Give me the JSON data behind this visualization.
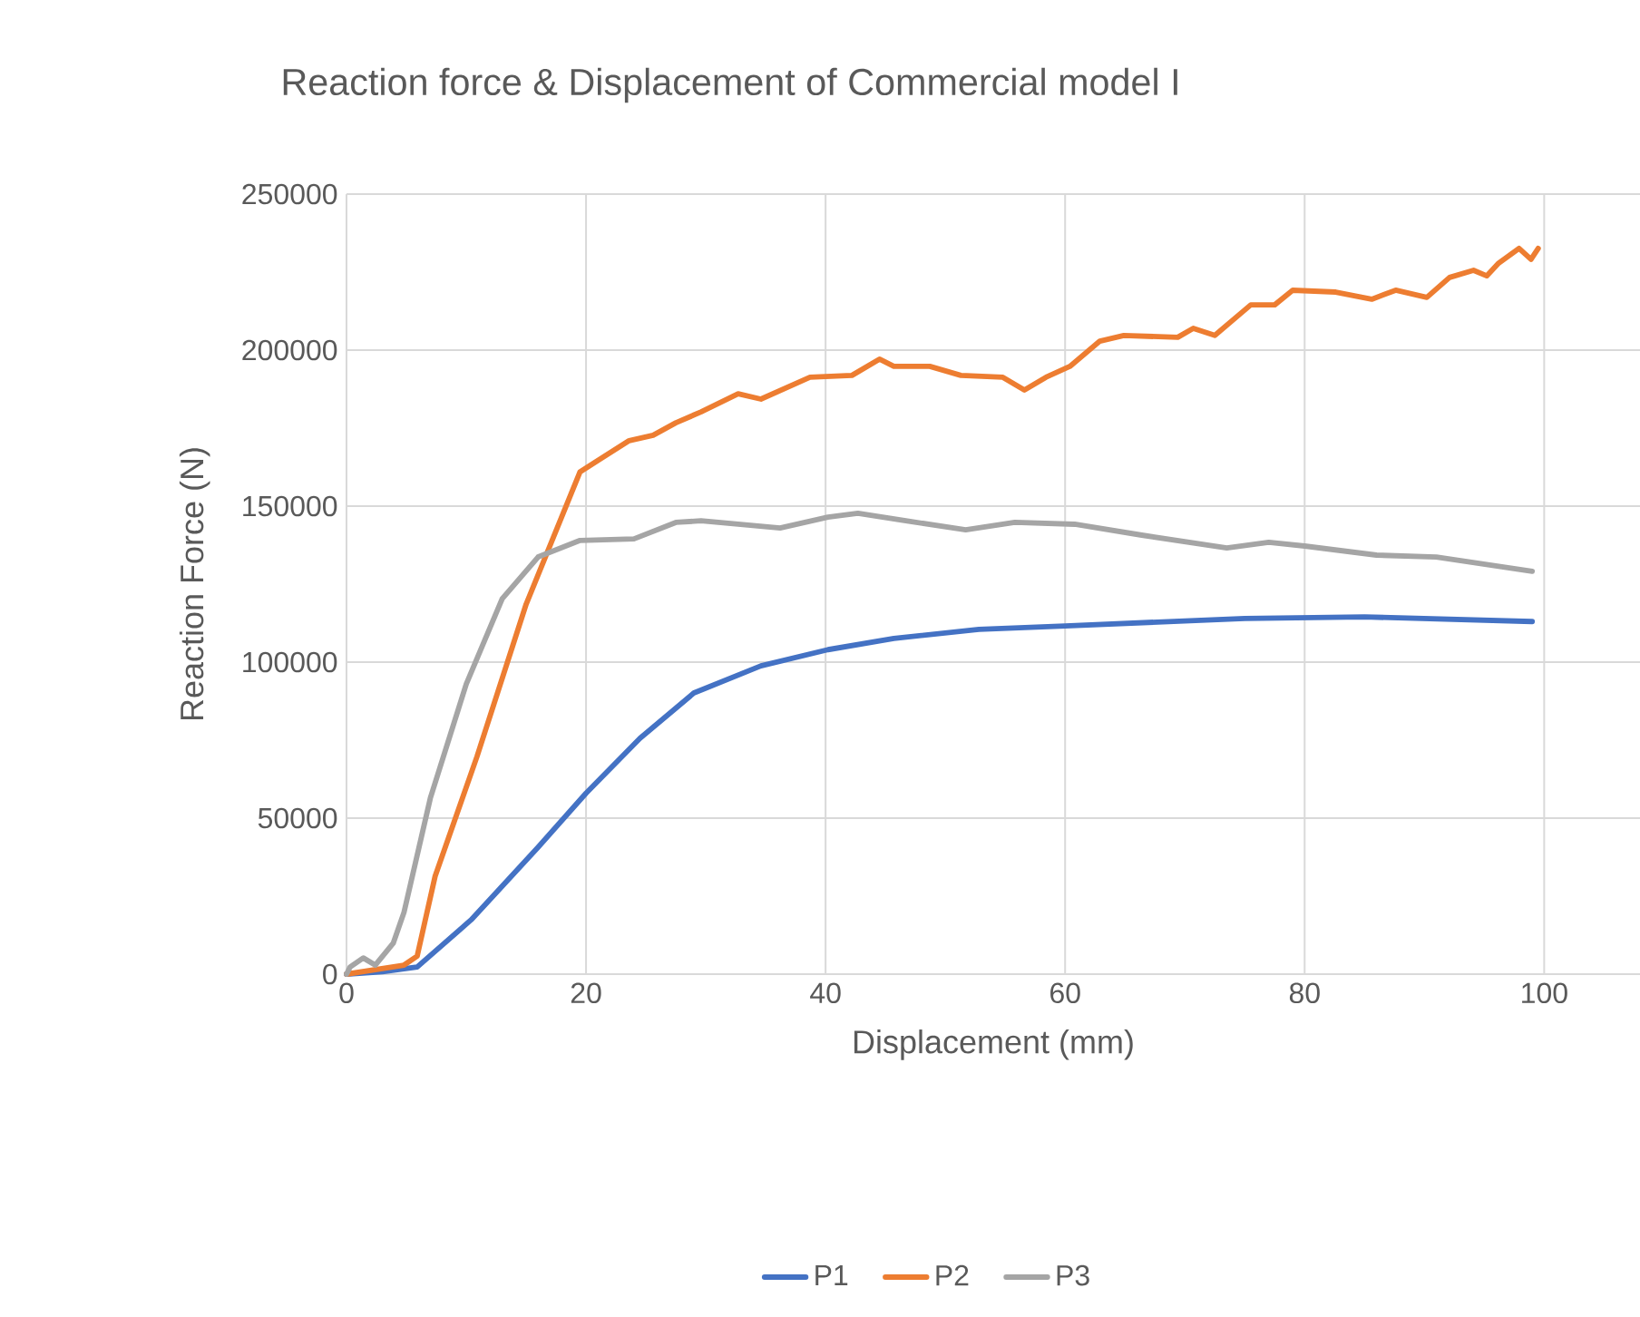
{
  "chart_data": {
    "type": "line",
    "title": "Reaction force & Displacement of Commercial model I",
    "xlabel": "Displacement (mm)",
    "ylabel": "Reaction Force (N)",
    "xlim": [
      0,
      108
    ],
    "xticks": [
      0,
      20,
      40,
      60,
      80,
      100
    ],
    "ylim": [
      0,
      250000
    ],
    "yticks": [
      0,
      50000,
      100000,
      150000,
      200000,
      250000
    ],
    "grid": true,
    "legend": "bottom",
    "marker": "none",
    "line_style": "solid",
    "series": [
      {
        "name": "P1",
        "color": "#4472c4",
        "x": [
          0,
          3,
          5.9,
          10.4,
          16,
          20,
          24.5,
          29,
          34.6,
          40.2,
          45.7,
          52.8,
          60,
          75,
          85,
          99
        ],
        "values": [
          0,
          800,
          2300,
          17400,
          40700,
          58000,
          75600,
          90100,
          98800,
          104000,
          107600,
          110500,
          111600,
          114000,
          114500,
          113000
        ]
      },
      {
        "name": "P2",
        "color": "#ed7d31",
        "x": [
          0,
          4.8,
          5.9,
          7.4,
          10.9,
          15,
          19.5,
          23.6,
          25.6,
          27.5,
          29.6,
          32.7,
          34.6,
          38.7,
          42.2,
          44.5,
          45.7,
          48.7,
          51.3,
          54.8,
          56.6,
          58.4,
          60.4,
          62.9,
          64.9,
          69.4,
          70.7,
          72.5,
          75.5,
          77.5,
          79,
          82.6,
          85.6,
          87.6,
          90.2,
          92.1,
          94.1,
          95.2,
          96.2,
          97.9,
          98.9,
          99.5
        ],
        "values": [
          0,
          2900,
          5800,
          31400,
          69800,
          118600,
          161000,
          171000,
          172700,
          176700,
          180200,
          186000,
          184300,
          191300,
          191900,
          197100,
          194800,
          194800,
          191900,
          191300,
          187200,
          191300,
          194800,
          202900,
          204700,
          204100,
          207000,
          204700,
          214500,
          214500,
          219200,
          218600,
          216300,
          219200,
          216900,
          223300,
          225600,
          223800,
          227900,
          232600,
          229100,
          232600
        ]
      },
      {
        "name": "P3",
        "color": "#a5a5a5",
        "x": [
          0,
          0.3,
          1.4,
          2.4,
          3.9,
          4.8,
          7,
          10,
          13,
          16,
          19.5,
          24,
          27.5,
          29.6,
          36.2,
          40.2,
          42.7,
          46.7,
          51.7,
          55.8,
          60.8,
          66.4,
          73.5,
          77,
          80,
          86,
          91,
          99
        ],
        "values": [
          0,
          2300,
          5200,
          2900,
          9900,
          19800,
          56400,
          93000,
          120300,
          133700,
          139000,
          139500,
          144800,
          145300,
          143000,
          146500,
          147700,
          145300,
          142400,
          144800,
          144200,
          140700,
          136600,
          138400,
          137200,
          134300,
          133700,
          129100
        ]
      }
    ]
  }
}
